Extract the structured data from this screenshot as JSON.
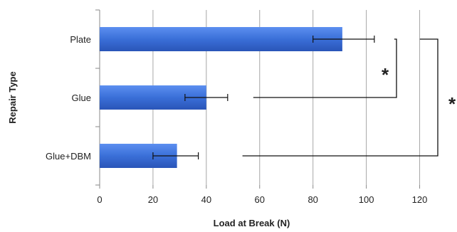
{
  "chart_data": {
    "type": "bar",
    "orientation": "horizontal",
    "categories": [
      "Plate",
      "Glue",
      "Glue+DBM"
    ],
    "values": [
      91,
      40,
      29
    ],
    "error_low": [
      80,
      32,
      20
    ],
    "error_high": [
      103,
      48,
      37
    ],
    "xlabel": "Load at Break (N)",
    "ylabel": "Repair Type",
    "xlim": [
      0,
      130
    ],
    "xticks": [
      0,
      20,
      40,
      60,
      80,
      100,
      120
    ],
    "grid": true,
    "bar_color": "#3a6fd8",
    "significance": [
      {
        "between": [
          "Plate",
          "Glue"
        ],
        "marker": "*"
      },
      {
        "between": [
          "Plate",
          "Glue+DBM"
        ],
        "marker": "*"
      }
    ]
  }
}
